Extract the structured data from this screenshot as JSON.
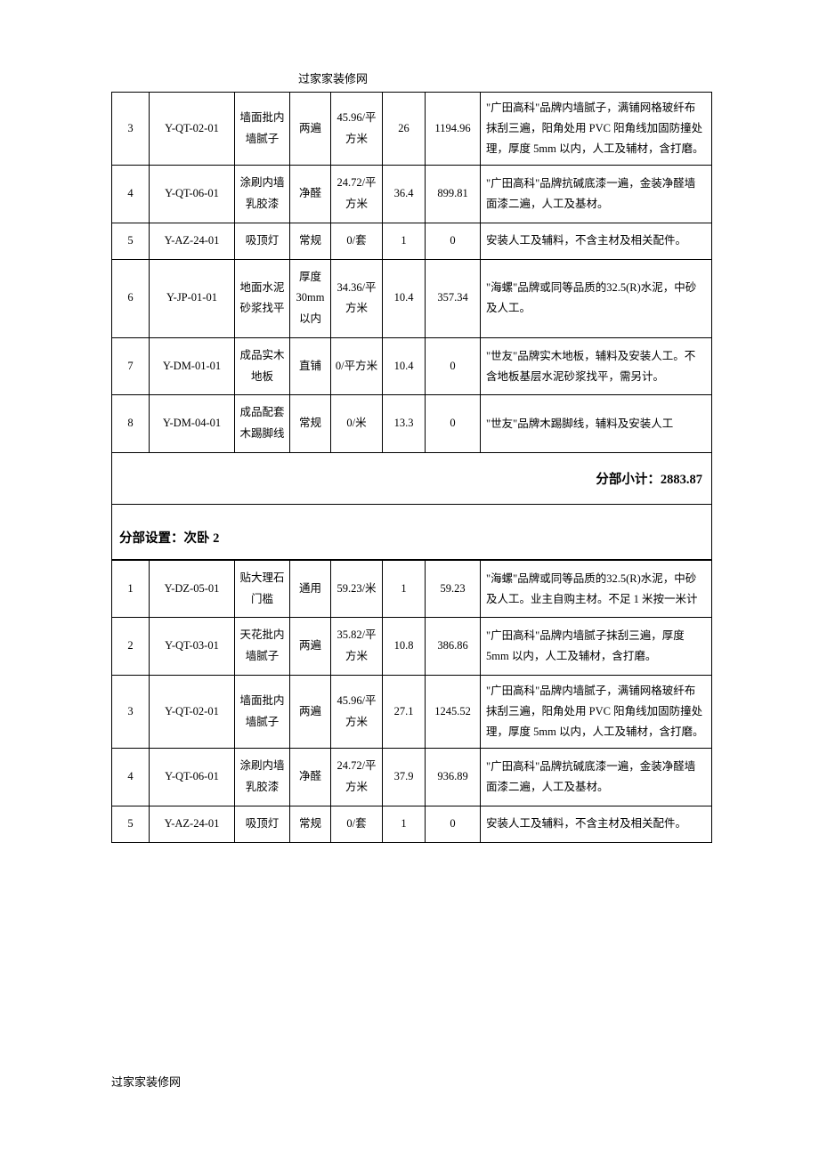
{
  "header_text": "过家家装修网",
  "footer_text": "过家家装修网",
  "subtotal_label": "分部小计：",
  "subtotal_value": "2883.87",
  "section2_label": "分部设置：次卧 2",
  "colors": {
    "text": "#000000",
    "background": "#ffffff",
    "border": "#000000"
  },
  "table1": {
    "rows": [
      {
        "idx": "3",
        "code": "Y-QT-02-01",
        "name": "墙面批内墙腻子",
        "spec": "两遍",
        "price": "45.96/平方米",
        "qty": "26",
        "total": "1194.96",
        "desc": "\"广田高科\"品牌内墙腻子，满铺网格玻纤布抹刮三遍，阳角处用 PVC 阳角线加固防撞处理，厚度 5mm 以内，人工及辅材，含打磨。"
      },
      {
        "idx": "4",
        "code": "Y-QT-06-01",
        "name": "涂刷内墙乳胶漆",
        "spec": "净醛",
        "price": "24.72/平方米",
        "qty": "36.4",
        "total": "899.81",
        "desc": "\"广田高科\"品牌抗碱底漆一遍，金装净醛墙面漆二遍，人工及基材。"
      },
      {
        "idx": "5",
        "code": "Y-AZ-24-01",
        "name": "吸顶灯",
        "spec": "常规",
        "price": "0/套",
        "qty": "1",
        "total": "0",
        "desc": "安装人工及辅料，不含主材及相关配件。"
      },
      {
        "idx": "6",
        "code": "Y-JP-01-01",
        "name": "地面水泥砂浆找平",
        "spec": "厚度30mm以内",
        "price": "34.36/平方米",
        "qty": "10.4",
        "total": "357.34",
        "desc": "\"海螺\"品牌或同等品质的32.5(R)水泥，中砂及人工。"
      },
      {
        "idx": "7",
        "code": "Y-DM-01-01",
        "name": "成品实木地板",
        "spec": "直铺",
        "price": "0/平方米",
        "qty": "10.4",
        "total": "0",
        "desc": "\"世友\"品牌实木地板，辅料及安装人工。不含地板基层水泥砂浆找平，需另计。"
      },
      {
        "idx": "8",
        "code": "Y-DM-04-01",
        "name": "成品配套木踢脚线",
        "spec": "常规",
        "price": "0/米",
        "qty": "13.3",
        "total": "0",
        "desc": "\"世友\"品牌木踢脚线，辅料及安装人工"
      }
    ]
  },
  "table2": {
    "rows": [
      {
        "idx": "1",
        "code": "Y-DZ-05-01",
        "name": "贴大理石门槛",
        "spec": "通用",
        "price": "59.23/米",
        "qty": "1",
        "total": "59.23",
        "desc": "\"海螺\"品牌或同等品质的32.5(R)水泥，中砂及人工。业主自购主材。不足 1 米按一米计"
      },
      {
        "idx": "2",
        "code": "Y-QT-03-01",
        "name": "天花批内墙腻子",
        "spec": "两遍",
        "price": "35.82/平方米",
        "qty": "10.8",
        "total": "386.86",
        "desc": "\"广田高科\"品牌内墙腻子抹刮三遍，厚度 5mm 以内，人工及辅材，含打磨。"
      },
      {
        "idx": "3",
        "code": "Y-QT-02-01",
        "name": "墙面批内墙腻子",
        "spec": "两遍",
        "price": "45.96/平方米",
        "qty": "27.1",
        "total": "1245.52",
        "desc": "\"广田高科\"品牌内墙腻子，满铺网格玻纤布抹刮三遍，阳角处用 PVC 阳角线加固防撞处理，厚度 5mm 以内，人工及辅材，含打磨。"
      },
      {
        "idx": "4",
        "code": "Y-QT-06-01",
        "name": "涂刷内墙乳胶漆",
        "spec": "净醛",
        "price": "24.72/平方米",
        "qty": "37.9",
        "total": "936.89",
        "desc": "\"广田高科\"品牌抗碱底漆一遍，金装净醛墙面漆二遍，人工及基材。"
      },
      {
        "idx": "5",
        "code": "Y-AZ-24-01",
        "name": "吸顶灯",
        "spec": "常规",
        "price": "0/套",
        "qty": "1",
        "total": "0",
        "desc": "安装人工及辅料，不含主材及相关配件。"
      }
    ]
  }
}
